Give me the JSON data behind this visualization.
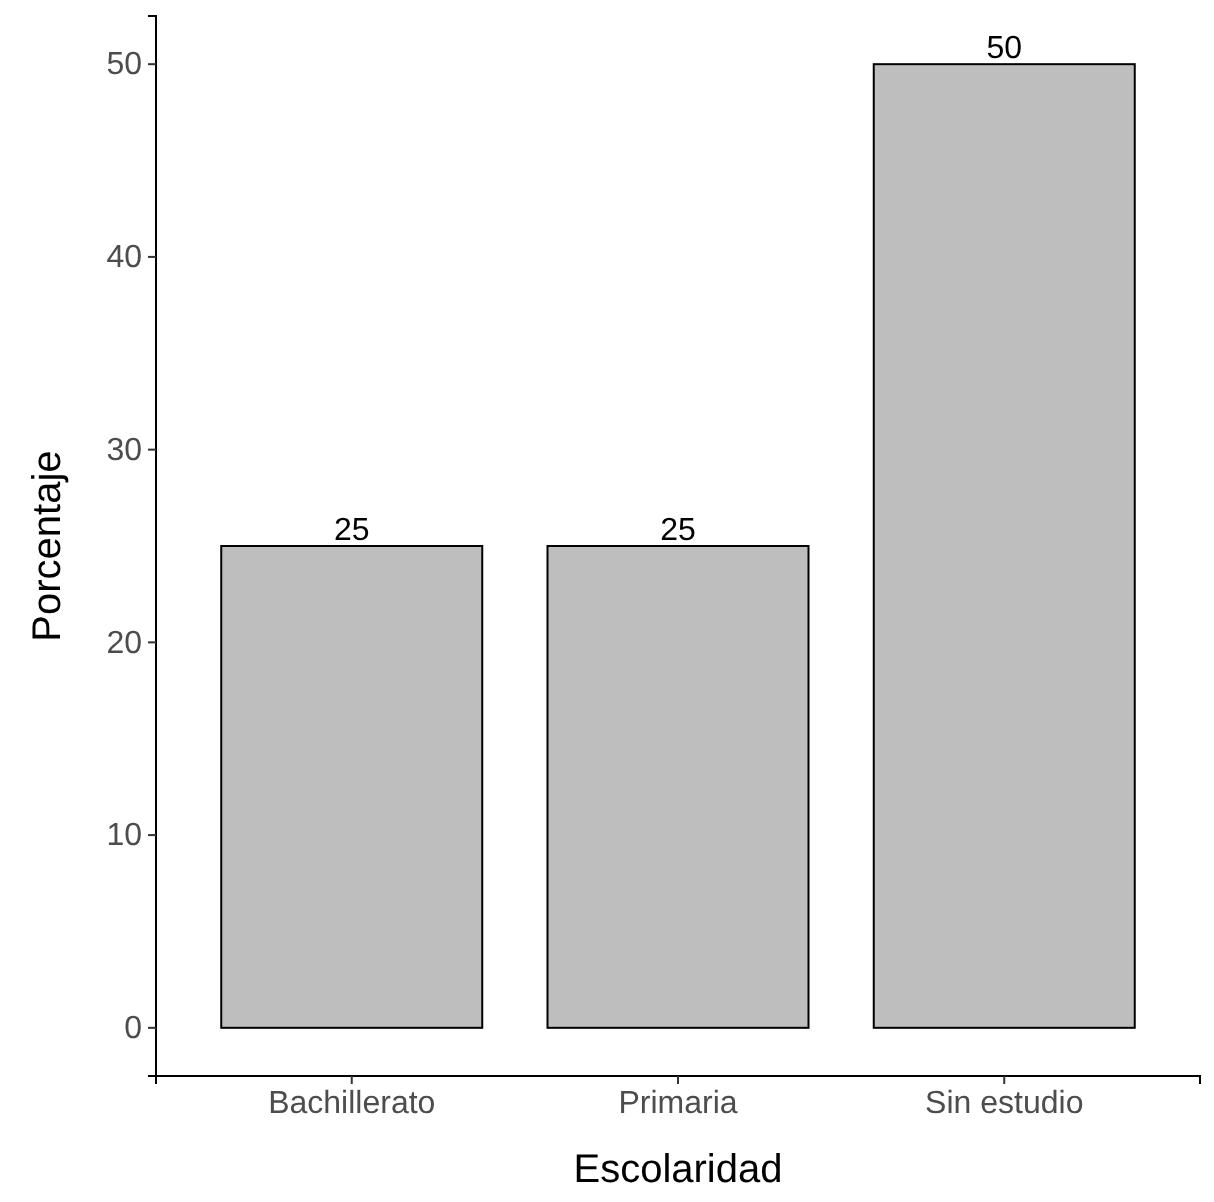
{
  "chart_data": {
    "type": "bar",
    "xlabel": "Escolaridad",
    "ylabel": "Porcentaje",
    "categories": [
      "Bachillerato",
      "Primaria",
      "Sin estudio"
    ],
    "values": [
      25,
      25,
      50
    ],
    "color": "#bebebe",
    "ylim": [
      -2.5,
      52.5
    ],
    "yticks": [
      0,
      10,
      20,
      30,
      40,
      50
    ],
    "grid": false,
    "data_labels": true
  }
}
